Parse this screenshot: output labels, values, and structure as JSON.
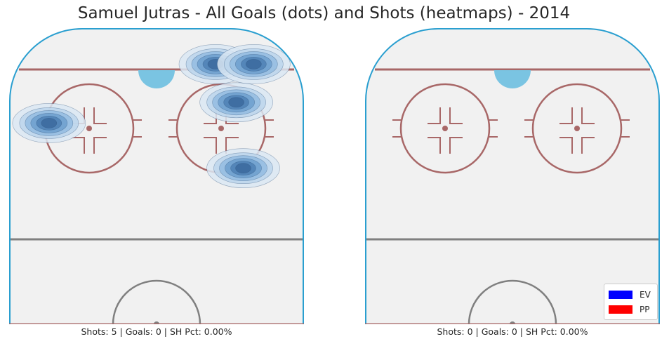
{
  "title": "Samuel Jutras - All Goals (dots) and Shots (heatmaps) - 2014",
  "colors": {
    "ice": "#f1f1f1",
    "boards": "#2a9fd0",
    "red_line": "#a86767",
    "blue_line": "#808080",
    "crease": "#7ac4e2",
    "heat": [
      "#dbe8f3",
      "#bcd5eb",
      "#93bce0",
      "#6d9fce",
      "#4f81b5",
      "#3c6a9e"
    ]
  },
  "chart_data": [
    {
      "type": "heatmap",
      "panel": "left",
      "caption": "Shots: 5 | Goals: 0 | SH Pct: 0.00%",
      "x_range": [
        -42.5,
        42.5
      ],
      "y_range": [
        0,
        85
      ],
      "shots": [
        {
          "x": 17,
          "y": 75,
          "strength": "EV"
        },
        {
          "x": 23,
          "y": 64,
          "strength": "EV"
        },
        {
          "x": -31,
          "y": 58,
          "strength": "EV"
        },
        {
          "x": 25,
          "y": 45,
          "strength": "EV"
        },
        {
          "x": 28,
          "y": 75,
          "strength": "EV"
        }
      ],
      "goals": []
    },
    {
      "type": "heatmap",
      "panel": "right",
      "caption": "Shots: 0 | Goals: 0 | SH Pct: 0.00%",
      "x_range": [
        -42.5,
        42.5
      ],
      "y_range": [
        0,
        85
      ],
      "shots": [],
      "goals": []
    }
  ],
  "legend": {
    "position": "lower-right",
    "items": [
      {
        "label": "EV",
        "color": "#0000ff"
      },
      {
        "label": "PP",
        "color": "#ff0000"
      }
    ]
  }
}
